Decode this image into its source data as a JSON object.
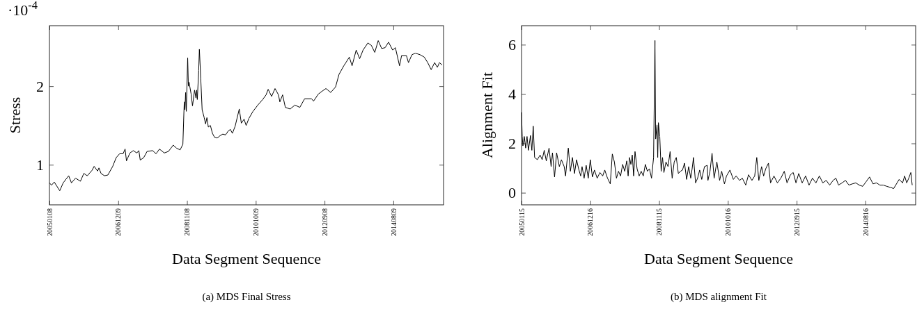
{
  "chart_data": [
    {
      "type": "line",
      "title": "(a) MDS Final Stress",
      "xlabel": "Data Segment Sequence",
      "ylabel": "Stress",
      "annotations": [
        "·10$^{-4}$"
      ],
      "xlim": [
        "2005-01-08",
        "2016-01-02"
      ],
      "xticks": [
        {
          "value": "2005-01-08",
          "label": "20050108"
        },
        {
          "value": "2006-12-09",
          "label": "20061209"
        },
        {
          "value": "2008-11-08",
          "label": "20081108"
        },
        {
          "value": "2010-10-09",
          "label": "20101009"
        },
        {
          "value": "2012-09-08",
          "label": "20120908"
        },
        {
          "value": "2014-08-09",
          "label": "20140809"
        }
      ],
      "ylim": [
        0.49,
        2.77
      ],
      "yticks": [
        1,
        2
      ],
      "series": [
        {
          "color": "#000000",
          "x": [
            "2005-01-08",
            "2005-01-29",
            "2005-02-26",
            "2005-04-23",
            "2005-05-28",
            "2005-07-23",
            "2005-08-20",
            "2005-10-01",
            "2005-11-19",
            "2005-12-24",
            "2006-01-28",
            "2006-03-18",
            "2006-04-08",
            "2006-05-13",
            "2006-05-27",
            "2006-06-17",
            "2006-07-22",
            "2006-08-26",
            "2006-10-14",
            "2006-11-18",
            "2006-12-23",
            "2007-01-27",
            "2007-02-17",
            "2007-03-03",
            "2007-04-07",
            "2007-05-12",
            "2007-06-16",
            "2007-07-07",
            "2007-07-21",
            "2007-08-25",
            "2007-09-29",
            "2007-11-24",
            "2007-12-29",
            "2008-02-02",
            "2008-03-22",
            "2008-05-03",
            "2008-06-21",
            "2008-07-26",
            "2008-08-30",
            "2008-09-27",
            "2008-10-11",
            "2008-10-18",
            "2008-10-25",
            "2008-11-01",
            "2008-11-15",
            "2008-11-22",
            "2008-11-29",
            "2008-12-20",
            "2009-01-03",
            "2009-01-24",
            "2009-02-07",
            "2009-02-14",
            "2009-02-21",
            "2009-03-07",
            "2009-03-14",
            "2009-03-28",
            "2009-04-11",
            "2009-05-02",
            "2009-05-16",
            "2009-05-30",
            "2009-06-13",
            "2009-07-04",
            "2009-07-25",
            "2009-08-15",
            "2009-09-12",
            "2009-10-10",
            "2009-11-07",
            "2009-12-05",
            "2010-01-02",
            "2010-01-23",
            "2010-02-13",
            "2010-03-13",
            "2010-04-24",
            "2010-05-15",
            "2010-06-12",
            "2010-07-03",
            "2010-07-31",
            "2010-09-11",
            "2010-10-30",
            "2010-12-18",
            "2011-01-22",
            "2011-02-12",
            "2011-03-19",
            "2011-04-23",
            "2011-05-28",
            "2011-06-11",
            "2011-07-09",
            "2011-08-06",
            "2011-09-24",
            "2011-11-12",
            "2011-12-31",
            "2012-02-18",
            "2012-04-28",
            "2012-05-19",
            "2012-07-07",
            "2012-08-18",
            "2012-09-22",
            "2012-11-10",
            "2012-12-29",
            "2013-02-02",
            "2013-03-23",
            "2013-04-13",
            "2013-05-18",
            "2013-06-15",
            "2013-07-27",
            "2013-08-31",
            "2013-10-05",
            "2013-11-23",
            "2013-12-28",
            "2014-02-01",
            "2014-03-08",
            "2014-04-12",
            "2014-05-17",
            "2014-06-21",
            "2014-08-02",
            "2014-08-30",
            "2014-10-11",
            "2014-11-01",
            "2014-12-20",
            "2015-01-10",
            "2015-02-14",
            "2015-03-21",
            "2015-05-09",
            "2015-06-20",
            "2015-07-25",
            "2015-08-29",
            "2015-10-03",
            "2015-10-31",
            "2015-11-21",
            "2015-12-19"
          ],
          "values": [
            0.77,
            0.74,
            0.78,
            0.67,
            0.77,
            0.86,
            0.77,
            0.83,
            0.79,
            0.89,
            0.86,
            0.93,
            0.98,
            0.92,
            0.96,
            0.89,
            0.86,
            0.87,
            0.98,
            1.09,
            1.14,
            1.14,
            1.2,
            1.05,
            1.15,
            1.18,
            1.15,
            1.18,
            1.06,
            1.09,
            1.17,
            1.18,
            1.14,
            1.2,
            1.15,
            1.17,
            1.25,
            1.21,
            1.19,
            1.26,
            1.8,
            1.7,
            1.92,
            1.68,
            2.36,
            2.0,
            2.05,
            1.9,
            1.75,
            1.95,
            1.85,
            1.95,
            1.83,
            2.2,
            2.47,
            2.1,
            1.7,
            1.6,
            1.52,
            1.6,
            1.48,
            1.5,
            1.4,
            1.35,
            1.34,
            1.37,
            1.39,
            1.38,
            1.43,
            1.45,
            1.4,
            1.49,
            1.71,
            1.53,
            1.58,
            1.5,
            1.59,
            1.68,
            1.76,
            1.83,
            1.89,
            1.96,
            1.87,
            1.97,
            1.89,
            1.8,
            1.89,
            1.73,
            1.71,
            1.76,
            1.73,
            1.84,
            1.84,
            1.81,
            1.9,
            1.94,
            1.97,
            1.92,
            1.99,
            2.15,
            2.26,
            2.3,
            2.37,
            2.26,
            2.46,
            2.35,
            2.46,
            2.55,
            2.52,
            2.43,
            2.58,
            2.48,
            2.49,
            2.56,
            2.46,
            2.49,
            2.26,
            2.39,
            2.39,
            2.3,
            2.4,
            2.42,
            2.4,
            2.37,
            2.3,
            2.21,
            2.3,
            2.24,
            2.3,
            2.27
          ]
        }
      ]
    },
    {
      "type": "line",
      "title": "(b) MDS alignment Fit",
      "xlabel": "Data Segment Sequence",
      "ylabel": "Alignment Fit",
      "xlim": [
        "2005-01-15",
        "2016-01-09"
      ],
      "xticks": [
        {
          "value": "2005-01-15",
          "label": "20050115"
        },
        {
          "value": "2006-12-16",
          "label": "20061216"
        },
        {
          "value": "2008-11-15",
          "label": "20081115"
        },
        {
          "value": "2010-10-16",
          "label": "20101016"
        },
        {
          "value": "2012-09-15",
          "label": "20120915"
        },
        {
          "value": "2014-08-16",
          "label": "20140816"
        }
      ],
      "ylim": [
        -0.49,
        6.77
      ],
      "yticks": [
        0,
        2,
        4,
        6
      ],
      "series": [
        {
          "color": "#000000",
          "x": [
            "2005-01-15",
            "2005-01-22",
            "2005-01-29",
            "2005-02-12",
            "2005-02-26",
            "2005-03-12",
            "2005-03-26",
            "2005-04-16",
            "2005-04-30",
            "2005-05-14",
            "2005-05-28",
            "2005-06-25",
            "2005-07-23",
            "2005-08-13",
            "2005-09-03",
            "2005-09-24",
            "2005-10-22",
            "2005-11-12",
            "2005-11-26",
            "2005-12-17",
            "2006-01-07",
            "2006-02-04",
            "2006-02-25",
            "2006-03-25",
            "2006-04-08",
            "2006-05-06",
            "2006-05-27",
            "2006-06-17",
            "2006-07-08",
            "2006-07-29",
            "2006-08-19",
            "2006-09-09",
            "2006-09-23",
            "2006-10-14",
            "2006-11-04",
            "2006-11-25",
            "2006-12-16",
            "2007-01-06",
            "2007-01-27",
            "2007-02-24",
            "2007-03-24",
            "2007-04-21",
            "2007-05-12",
            "2007-06-09",
            "2007-07-07",
            "2007-07-28",
            "2007-08-18",
            "2007-09-08",
            "2007-09-29",
            "2007-10-20",
            "2007-11-10",
            "2007-12-01",
            "2007-12-22",
            "2008-01-05",
            "2008-01-19",
            "2008-02-02",
            "2008-02-16",
            "2008-03-01",
            "2008-03-15",
            "2008-04-05",
            "2008-04-26",
            "2008-05-17",
            "2008-06-07",
            "2008-06-28",
            "2008-07-19",
            "2008-08-09",
            "2008-08-30",
            "2008-09-20",
            "2008-10-04",
            "2008-10-11",
            "2008-10-25",
            "2008-11-01",
            "2008-11-08",
            "2008-11-22",
            "2008-12-06",
            "2008-12-20",
            "2009-01-03",
            "2009-01-24",
            "2009-02-14",
            "2009-03-07",
            "2009-03-28",
            "2009-04-18",
            "2009-05-09",
            "2009-05-30",
            "2009-06-20",
            "2009-07-11",
            "2009-08-01",
            "2009-08-22",
            "2009-09-12",
            "2009-10-03",
            "2009-10-17",
            "2009-10-31",
            "2009-11-21",
            "2009-12-12",
            "2010-01-02",
            "2010-01-23",
            "2010-01-30",
            "2010-02-20",
            "2010-03-20",
            "2010-03-27",
            "2010-04-17",
            "2010-05-08",
            "2010-05-29",
            "2010-06-26",
            "2010-07-24",
            "2010-08-14",
            "2010-09-11",
            "2010-10-02",
            "2010-11-06",
            "2010-12-11",
            "2011-01-08",
            "2011-02-12",
            "2011-03-12",
            "2011-04-16",
            "2011-05-14",
            "2011-06-18",
            "2011-07-16",
            "2011-08-06",
            "2011-08-27",
            "2011-09-24",
            "2011-10-15",
            "2011-11-05",
            "2011-12-03",
            "2011-12-24",
            "2012-01-28",
            "2012-03-03",
            "2012-04-07",
            "2012-05-12",
            "2012-06-09",
            "2012-07-14",
            "2012-08-11",
            "2012-09-08",
            "2012-10-06",
            "2012-11-10",
            "2012-12-15",
            "2013-01-19",
            "2013-02-23",
            "2013-03-30",
            "2013-05-04",
            "2013-06-08",
            "2013-07-13",
            "2013-08-17",
            "2013-09-21",
            "2013-10-19",
            "2013-11-16",
            "2013-12-21",
            "2014-01-25",
            "2014-03-01",
            "2014-04-05",
            "2014-05-10",
            "2014-06-14",
            "2014-07-19",
            "2014-08-23",
            "2014-09-27",
            "2014-11-01",
            "2014-12-06",
            "2015-01-10",
            "2015-02-14",
            "2015-03-21",
            "2015-04-25",
            "2015-05-30",
            "2015-07-04",
            "2015-07-25",
            "2015-08-29",
            "2015-09-19",
            "2015-10-10",
            "2015-10-31",
            "2015-11-21",
            "2015-12-05"
          ],
          "values": [
            3.26,
            2.28,
            1.9,
            2.28,
            1.81,
            2.28,
            1.72,
            2.32,
            1.72,
            2.7,
            1.43,
            1.34,
            1.53,
            1.34,
            1.72,
            1.29,
            1.81,
            1.06,
            1.62,
            0.64,
            1.62,
            1.06,
            1.34,
            1.06,
            0.68,
            1.81,
            0.87,
            1.43,
            0.78,
            1.34,
            0.97,
            0.68,
            1.06,
            0.59,
            1.11,
            0.59,
            1.34,
            0.64,
            0.92,
            0.59,
            0.82,
            0.68,
            0.92,
            0.59,
            0.36,
            1.57,
            1.25,
            0.59,
            0.87,
            0.68,
            1.15,
            0.87,
            1.29,
            0.68,
            1.43,
            1.15,
            1.53,
            0.68,
            1.67,
            0.97,
            0.68,
            0.87,
            0.68,
            1.15,
            0.87,
            0.97,
            0.59,
            1.43,
            6.17,
            2.18,
            2.75,
            1.43,
            2.84,
            2.28,
            0.87,
            1.43,
            0.82,
            1.25,
            1.06,
            1.67,
            0.59,
            1.25,
            1.43,
            0.78,
            0.87,
            0.92,
            1.2,
            0.54,
            1.06,
            0.59,
            0.97,
            1.43,
            0.4,
            0.59,
            0.92,
            0.54,
            0.68,
            1.06,
            1.11,
            0.5,
            0.87,
            1.6,
            0.59,
            1.25,
            0.5,
            0.87,
            0.36,
            0.68,
            0.92,
            0.54,
            0.68,
            0.5,
            0.59,
            0.31,
            0.73,
            0.5,
            0.68,
            1.43,
            0.5,
            1.06,
            0.68,
            0.97,
            1.2,
            0.4,
            0.68,
            0.4,
            0.59,
            0.87,
            0.4,
            0.73,
            0.82,
            0.4,
            0.78,
            0.4,
            0.68,
            0.31,
            0.59,
            0.4,
            0.68,
            0.4,
            0.5,
            0.31,
            0.5,
            0.59,
            0.31,
            0.4,
            0.5,
            0.31,
            0.36,
            0.4,
            0.31,
            0.26,
            0.45,
            0.64,
            0.36,
            0.4,
            0.31,
            0.31,
            0.26,
            0.22,
            0.17,
            0.4,
            0.54,
            0.4,
            0.68,
            0.4,
            0.59,
            0.82,
            0.31
          ]
        }
      ]
    }
  ]
}
